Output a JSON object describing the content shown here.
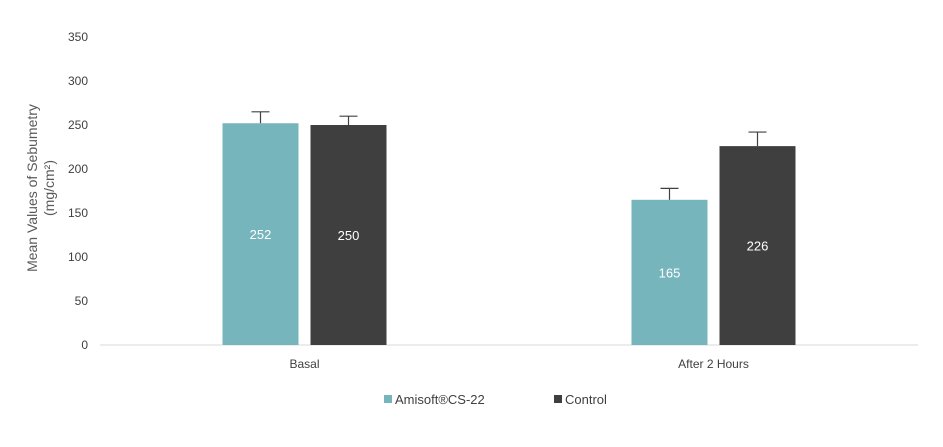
{
  "chart_data": {
    "type": "bar",
    "title": "",
    "ylabel_line1": "Mean Values of Sebumetry",
    "ylabel_line2": "(mg/cm²)",
    "categories": [
      "Basal",
      "After 2 Hours"
    ],
    "ylim": [
      0,
      350
    ],
    "yticks": [
      0,
      50,
      100,
      150,
      200,
      250,
      300,
      350
    ],
    "legend_position": "bottom",
    "series": [
      {
        "name": "Amisoft®CS-22",
        "values": [
          252,
          165
        ],
        "errors": [
          13,
          13
        ],
        "color": "#77b5bd"
      },
      {
        "name": "Control",
        "values": [
          250,
          226
        ],
        "errors": [
          10,
          16
        ],
        "color": "#3f3f3f"
      }
    ]
  }
}
